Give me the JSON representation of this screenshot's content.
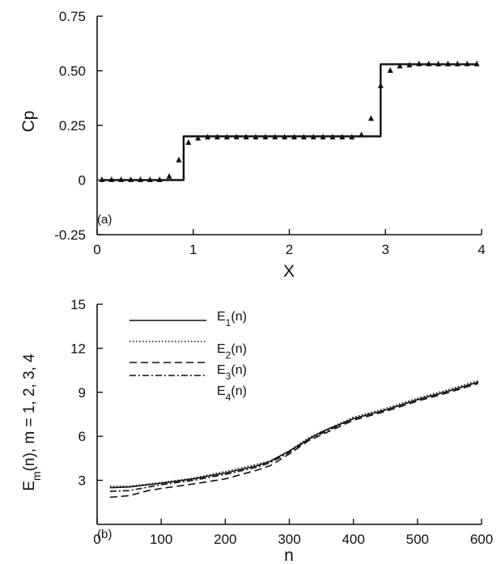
{
  "chart_data": [
    {
      "id": "a",
      "type": "line+scatter",
      "panel_label": "(a)",
      "xlabel": "X",
      "ylabel": "Cp",
      "xlim": [
        0,
        4
      ],
      "ylim": [
        -0.25,
        0.75
      ],
      "xticks": [
        "0",
        "1",
        "2",
        "3",
        "4"
      ],
      "yticks": [
        "-0.25",
        "0",
        "0.25",
        "0.50",
        "0.75"
      ],
      "xtick_values": [
        0,
        1,
        2,
        3,
        4
      ],
      "ytick_values": [
        -0.25,
        0,
        0.25,
        0.5,
        0.75
      ],
      "grid": false,
      "series": [
        {
          "style": "solid-line",
          "x": [
            0.05,
            0.9,
            0.9,
            2.95,
            2.95,
            3.95
          ],
          "y": [
            0.0,
            0.0,
            0.2,
            0.2,
            0.53,
            0.53
          ]
        },
        {
          "style": "triangle-markers",
          "x": [
            0.05,
            0.15,
            0.25,
            0.35,
            0.45,
            0.55,
            0.65,
            0.75,
            0.85,
            0.95,
            1.05,
            1.15,
            1.25,
            1.35,
            1.45,
            1.55,
            1.65,
            1.75,
            1.85,
            1.95,
            2.05,
            2.15,
            2.25,
            2.35,
            2.45,
            2.55,
            2.65,
            2.75,
            2.85,
            2.95,
            3.05,
            3.15,
            3.25,
            3.35,
            3.45,
            3.55,
            3.65,
            3.75,
            3.85,
            3.95
          ],
          "y": [
            0.0,
            0.0,
            0.0,
            0.0,
            0.0,
            0.0,
            0.0,
            0.015,
            0.09,
            0.17,
            0.19,
            0.195,
            0.195,
            0.195,
            0.195,
            0.195,
            0.195,
            0.195,
            0.195,
            0.195,
            0.195,
            0.195,
            0.195,
            0.195,
            0.195,
            0.195,
            0.195,
            0.205,
            0.28,
            0.43,
            0.5,
            0.52,
            0.525,
            0.53,
            0.53,
            0.53,
            0.53,
            0.53,
            0.53,
            0.53
          ]
        }
      ]
    },
    {
      "id": "b",
      "type": "line",
      "panel_label": "(b)",
      "xlabel": "n",
      "ylabel": "E_m(n), m = 1, 2, 3, 4",
      "ylabel_base": "E",
      "ylabel_sub": "m",
      "ylabel_rest": "(n), m = 1, 2, 3, 4",
      "xlim": [
        0,
        600
      ],
      "ylim": [
        0,
        15
      ],
      "xticks": [
        "0",
        "100",
        "200",
        "300",
        "400",
        "500",
        "600"
      ],
      "yticks": [
        "3",
        "6",
        "9",
        "12",
        "15"
      ],
      "xtick_values": [
        0,
        100,
        200,
        300,
        400,
        500,
        600
      ],
      "ytick_values": [
        3,
        6,
        9,
        12,
        15
      ],
      "grid": false,
      "legend_position": "top-left",
      "series": [
        {
          "name": "E1(n)",
          "label_base": "E",
          "label_sub": "1",
          "label_rest": "(n)",
          "dash": "solid",
          "x": [
            20,
            50,
            80,
            100,
            150,
            200,
            250,
            270,
            300,
            330,
            350,
            400,
            450,
            500,
            550,
            595
          ],
          "y": [
            2.5,
            2.55,
            2.7,
            2.8,
            3.1,
            3.5,
            4.0,
            4.3,
            5.0,
            5.8,
            6.3,
            7.2,
            7.8,
            8.5,
            9.1,
            9.7
          ]
        },
        {
          "name": "E2(n)",
          "label_base": "E",
          "label_sub": "2",
          "label_rest": "(n)",
          "dash": "dotted",
          "x": [
            20,
            50,
            80,
            100,
            150,
            200,
            250,
            270,
            300,
            330,
            350,
            400,
            450,
            500,
            550,
            595
          ],
          "y": [
            2.6,
            2.6,
            2.75,
            2.85,
            3.15,
            3.6,
            4.1,
            4.3,
            5.0,
            5.9,
            6.3,
            7.3,
            7.9,
            8.6,
            9.2,
            9.8
          ]
        },
        {
          "name": "E3(n)",
          "label_base": "E",
          "label_sub": "3",
          "label_rest": "(n)",
          "dash": "dashed",
          "x": [
            20,
            50,
            80,
            100,
            150,
            200,
            250,
            270,
            300,
            330,
            350,
            400,
            450,
            500,
            550,
            595
          ],
          "y": [
            1.85,
            1.95,
            2.3,
            2.45,
            2.75,
            3.1,
            3.7,
            4.0,
            4.8,
            5.7,
            6.1,
            7.1,
            7.7,
            8.4,
            9.0,
            9.6
          ]
        },
        {
          "name": "E4(n)",
          "label_base": "E",
          "label_sub": "4",
          "label_rest": "(n)",
          "dash": "dash-dot",
          "x": [
            20,
            50,
            80,
            100,
            150,
            200,
            250,
            270,
            300,
            330,
            350,
            400,
            450,
            500,
            550,
            595
          ],
          "y": [
            2.25,
            2.3,
            2.55,
            2.7,
            3.0,
            3.4,
            3.9,
            4.2,
            4.9,
            5.8,
            6.2,
            7.2,
            7.8,
            8.5,
            9.1,
            9.7
          ]
        }
      ]
    }
  ]
}
